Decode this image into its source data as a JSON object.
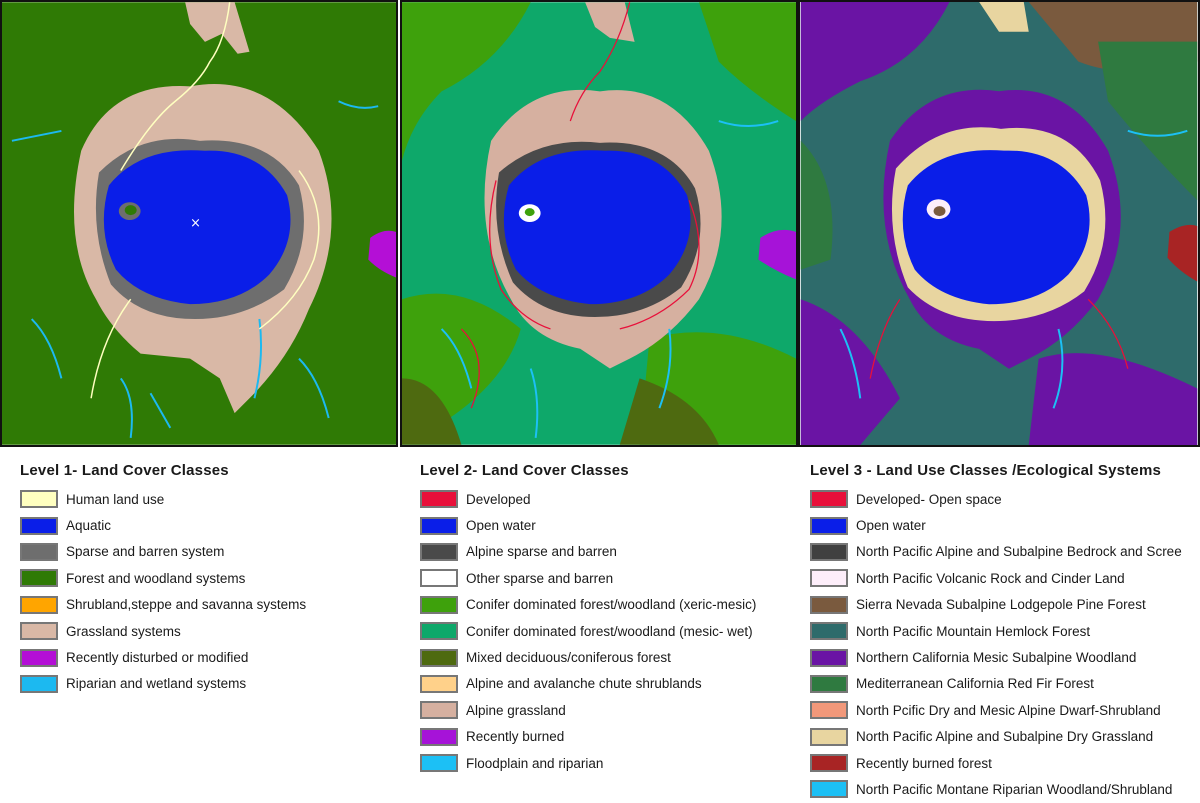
{
  "panels": {
    "level1": {
      "name": "Level 1 map"
    },
    "level2": {
      "name": "Level 2 map"
    },
    "level3": {
      "name": "Level 3 map"
    }
  },
  "legends": [
    {
      "title": "Level 1- Land Cover Classes",
      "items": [
        {
          "label": "Human land use",
          "color": "#ffffc0"
        },
        {
          "label": "Aquatic",
          "color": "#0a1ee8"
        },
        {
          "label": "Sparse and barren system",
          "color": "#6e6e6e"
        },
        {
          "label": "Forest and woodland systems",
          "color": "#2f7a05"
        },
        {
          "label": "Shrubland,steppe and savanna systems",
          "color": "#ffa500"
        },
        {
          "label": "Grassland systems",
          "color": "#d9b8a6"
        },
        {
          "label": "Recently disturbed or modified",
          "color": "#b40fd6"
        },
        {
          "label": "Riparian and wetland systems",
          "color": "#1cb9f0"
        }
      ]
    },
    {
      "title": "Level 2- Land Cover Classes",
      "items": [
        {
          "label": "Developed",
          "color": "#e8103a"
        },
        {
          "label": "Open water",
          "color": "#0a1ee8"
        },
        {
          "label": "Alpine sparse and barren",
          "color": "#4a4a4a"
        },
        {
          "label": "Other sparse and barren",
          "color": "#ffffff"
        },
        {
          "label": "Conifer dominated forest/woodland (xeric-mesic)",
          "color": "#3ea10c"
        },
        {
          "label": "Conifer dominated forest/woodland (mesic- wet)",
          "color": "#0ea86a"
        },
        {
          "label": "Mixed deciduous/coniferous forest",
          "color": "#4e6a10"
        },
        {
          "label": "Alpine and avalanche chute shrublands",
          "color": "#ffd18a"
        },
        {
          "label": "Alpine grassland",
          "color": "#d6b0a0"
        },
        {
          "label": "Recently burned",
          "color": "#a613d8"
        },
        {
          "label": "Floodplain and riparian",
          "color": "#1cc0f5"
        }
      ]
    },
    {
      "title": "Level 3 - Land Use Classes /Ecological Systems",
      "items": [
        {
          "label": "Developed- Open space",
          "color": "#e8103a"
        },
        {
          "label": "Open water",
          "color": "#0a1ee8"
        },
        {
          "label": "North Pacific Alpine and Subalpine Bedrock and Scree",
          "color": "#404040"
        },
        {
          "label": "North Pacific Volcanic Rock and Cinder Land",
          "color": "#fdeefa"
        },
        {
          "label": "Sierra Nevada Subalpine Lodgepole Pine Forest",
          "color": "#7a5a3e"
        },
        {
          "label": "North Pacific Mountain Hemlock Forest",
          "color": "#2e6b6b"
        },
        {
          "label": "Northern California Mesic Subalpine Woodland",
          "color": "#6a14a4"
        },
        {
          "label": "Mediterranean California Red Fir Forest",
          "color": "#2f7a40"
        },
        {
          "label": "North Pcific Dry and Mesic Alpine Dwarf-Shrubland",
          "color": "#f2987a"
        },
        {
          "label": "North Pacific Alpine and Subalpine Dry Grassland",
          "color": "#e8d5a0"
        },
        {
          "label": "Recently burned forest",
          "color": "#a82424"
        },
        {
          "label": "North Pacific Montane Riparian Woodland/Shrubland",
          "color": "#1cc0f5"
        }
      ]
    }
  ]
}
